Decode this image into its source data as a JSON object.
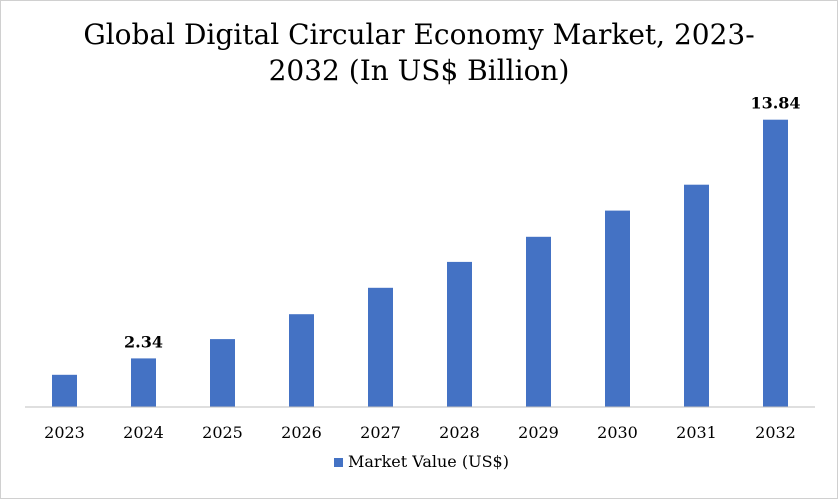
{
  "chart_data": {
    "type": "bar",
    "title_line1": "Global Digital Circular Economy Market, 2023-",
    "title_line2": "2032 (In US$ Billion)",
    "categories": [
      "2023",
      "2024",
      "2025",
      "2026",
      "2027",
      "2028",
      "2029",
      "2030",
      "2031",
      "2032"
    ],
    "series": [
      {
        "name": "Market Value (US$)",
        "color": "#4472C4",
        "values": [
          1.55,
          2.34,
          3.27,
          4.47,
          5.74,
          6.99,
          8.2,
          9.46,
          10.71,
          13.84
        ]
      }
    ],
    "data_labels": [
      {
        "index": 1,
        "text": "2.34"
      },
      {
        "index": 9,
        "text": "13.84"
      }
    ],
    "ylim": [
      0,
      14.5
    ],
    "grid": false,
    "legend_position": "bottom"
  }
}
